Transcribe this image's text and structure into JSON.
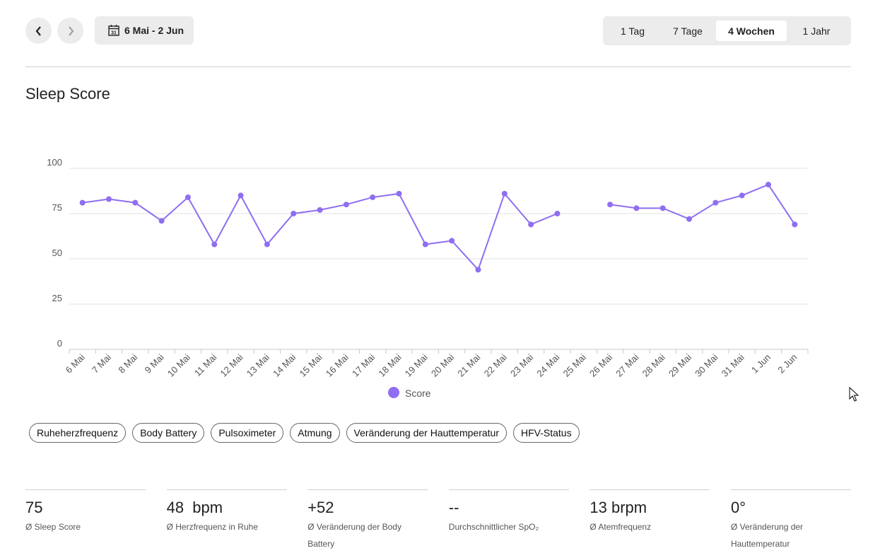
{
  "nav": {
    "prev_icon": "chevron-left-icon",
    "next_icon": "chevron-right-icon",
    "date_range": "6 Mai - 2 Jun"
  },
  "ranges": [
    {
      "label": "1 Tag",
      "active": false
    },
    {
      "label": "7 Tage",
      "active": false
    },
    {
      "label": "4 Wochen",
      "active": true
    },
    {
      "label": "1 Jahr",
      "active": false
    }
  ],
  "title": "Sleep Score",
  "chart_data": {
    "type": "line",
    "title": "Sleep Score",
    "categories": [
      "6 Mai",
      "7 Mai",
      "8 Mai",
      "9 Mai",
      "10 Mai",
      "11 Mai",
      "12 Mai",
      "13 Mai",
      "14 Mai",
      "15 Mai",
      "16 Mai",
      "17 Mai",
      "18 Mai",
      "19 Mai",
      "20 Mai",
      "21 Mai",
      "22 Mai",
      "23 Mai",
      "24 Mai",
      "25 Mai",
      "26 Mai",
      "27 Mai",
      "28 Mai",
      "29 Mai",
      "30 Mai",
      "31 Mai",
      "1 Jun",
      "2 Jun"
    ],
    "series": [
      {
        "name": "Score",
        "color": "#8f6ef2",
        "values": [
          81,
          83,
          81,
          71,
          84,
          58,
          85,
          58,
          75,
          77,
          80,
          84,
          86,
          58,
          60,
          44,
          86,
          69,
          75,
          null,
          80,
          78,
          78,
          72,
          81,
          85,
          91,
          69
        ]
      }
    ],
    "yticks": [
      0,
      25,
      50,
      75,
      100
    ],
    "ylim": [
      0,
      100
    ],
    "grid": true,
    "legend": "bottom-center"
  },
  "chips": [
    "Ruheherzfrequenz",
    "Body Battery",
    "Pulsoximeter",
    "Atmung",
    "Veränderung der Hauttemperatur",
    "HFV-Status"
  ],
  "stats": [
    {
      "value": "75",
      "label": "Ø Sleep Score"
    },
    {
      "value": "48  bpm",
      "label": "Ø Herzfrequenz in Ruhe"
    },
    {
      "value": "+52",
      "label": "Ø Veränderung der Body Battery"
    },
    {
      "value": "--",
      "label": "Durchschnittlicher SpO₂"
    },
    {
      "value": "13 brpm",
      "label": "Ø Atemfrequenz"
    },
    {
      "value": "0°",
      "label": "Ø Veränderung der Hauttemperatur"
    }
  ]
}
